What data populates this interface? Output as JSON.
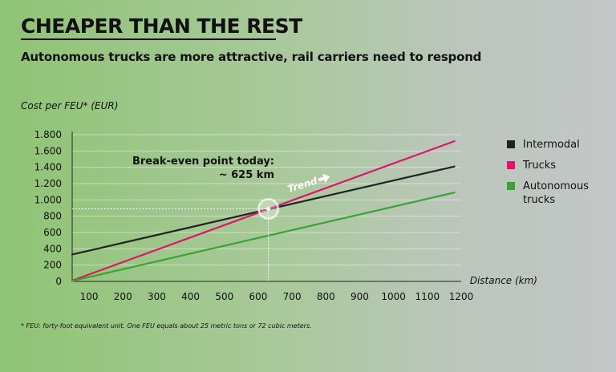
{
  "header": {
    "title": "CHEAPER THAN THE REST",
    "subtitle": "Autonomous trucks are more attractive, rail carriers need to respond"
  },
  "footnote": "* FEU: forty-foot equivalent unit. One FEU equals about 25 metric tons or 72 cubic meters.",
  "chart_data": {
    "type": "line",
    "title": "CHEAPER THAN THE REST",
    "subtitle": "Autonomous trucks are more attractive, rail carriers need to respond",
    "xlabel": "Distance (km)",
    "ylabel": "Cost per FEU* (EUR)",
    "xlim": [
      50,
      1200
    ],
    "ylim": [
      0,
      1800
    ],
    "xticks": [
      100,
      200,
      300,
      400,
      500,
      600,
      700,
      800,
      900,
      1000,
      1100,
      1200
    ],
    "xtick_labels": [
      "100",
      "200",
      "300",
      "400",
      "500",
      "600",
      "700",
      "800",
      "900",
      "1000",
      "1100",
      "1200"
    ],
    "yticks": [
      0,
      200,
      400,
      600,
      800,
      1000,
      1200,
      1400,
      1600,
      1800
    ],
    "ytick_labels": [
      "0",
      "200",
      "400",
      "600",
      "800",
      "1.000",
      "1.200",
      "1.400",
      "1.600",
      "1.800"
    ],
    "grid": "horizontal",
    "legend_position": "right",
    "series": [
      {
        "name": "Intermodal",
        "color": "#222222",
        "x": [
          50,
          1180
        ],
        "values": [
          330,
          1410
        ]
      },
      {
        "name": "Trucks",
        "color": "#e0126a",
        "x": [
          50,
          1180
        ],
        "values": [
          10,
          1720
        ]
      },
      {
        "name": "Autonomous trucks",
        "color": "#3aa335",
        "x": [
          50,
          1180
        ],
        "values": [
          5,
          1090
        ]
      }
    ],
    "annotations": {
      "break_even_label": "Break-even point today:",
      "break_even_value": "~ 625 km",
      "break_even_point": {
        "x": 630,
        "y": 890
      },
      "trend_label": "Trend"
    }
  }
}
